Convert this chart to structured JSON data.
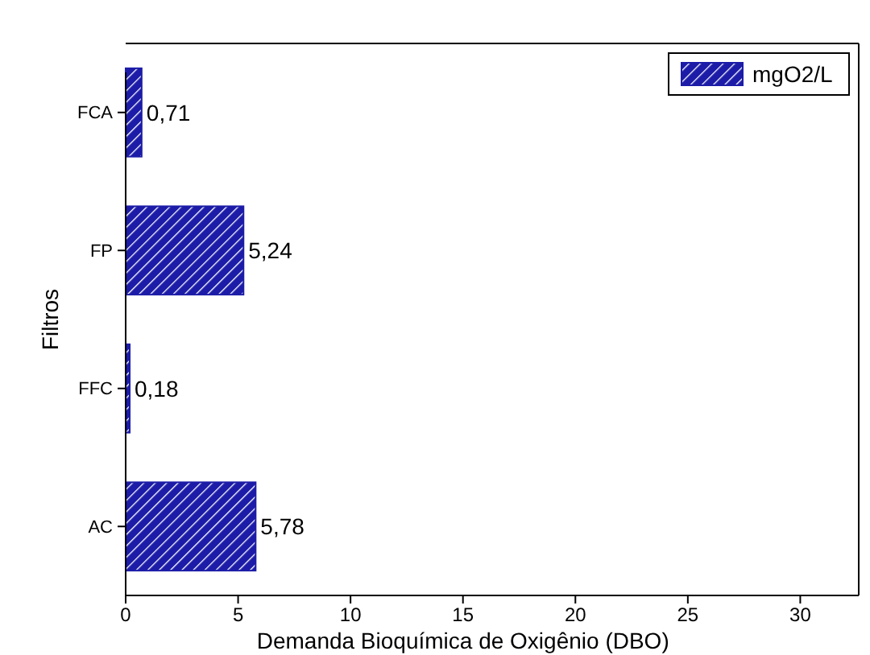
{
  "chart_data": {
    "type": "bar",
    "orientation": "horizontal",
    "xlabel": "Demanda Bioquímica de Oxigênio (DBO)",
    "ylabel": "Filtros",
    "categories": [
      "FCA",
      "FP",
      "FFC",
      "AC"
    ],
    "series": [
      {
        "name": "mgO2/L",
        "color": "#1c1ca8",
        "values": [
          0.71,
          5.24,
          0.18,
          5.78
        ],
        "value_labels": [
          "0,71",
          "5,24",
          "0,18",
          "5,78"
        ]
      }
    ],
    "xlim": [
      0,
      32.6
    ],
    "xticks": [
      0,
      5,
      10,
      15,
      20,
      25,
      30
    ],
    "legend": "top right",
    "grid": false
  }
}
